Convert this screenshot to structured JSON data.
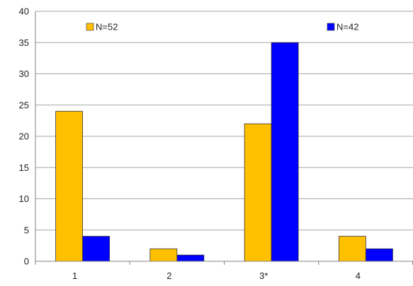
{
  "chart_data": {
    "type": "bar",
    "title": "",
    "xlabel": "",
    "ylabel": "",
    "categories": [
      "1",
      "2",
      "3*",
      "4"
    ],
    "series": [
      {
        "name": "N=52",
        "color": "#ffc000",
        "values": [
          24,
          2,
          22,
          4
        ]
      },
      {
        "name": "N=42",
        "color": "#0000ff",
        "values": [
          4,
          1,
          35,
          2
        ]
      }
    ],
    "ylim": [
      0,
      40
    ],
    "yticks": [
      0,
      5,
      10,
      15,
      20,
      25,
      30,
      35,
      40
    ],
    "grid": true,
    "legend_position": "top"
  }
}
